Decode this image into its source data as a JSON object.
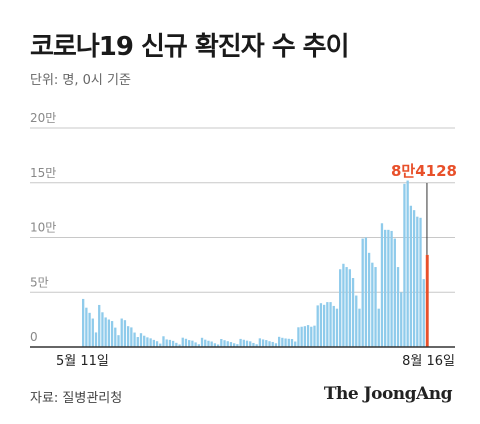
{
  "title": "코로나19 신규 확진자 수 추이",
  "unit_note": "단위: 명, 0시 기준",
  "source": "자료: 질병관리청",
  "brand": "The JoongAng",
  "colors": {
    "bar": "#8fcbeb",
    "highlight": "#e8502a",
    "grid": "#c8c8c8",
    "axis": "#333333"
  },
  "chart_data": {
    "type": "bar",
    "ylim": [
      0,
      200000
    ],
    "ytick_labels": [
      "0",
      "5만",
      "10만",
      "15만",
      "20만"
    ],
    "ytick_values": [
      0,
      50000,
      100000,
      150000,
      200000
    ],
    "xtick_labels": [
      "5월 11일",
      "8월 16일"
    ],
    "highlight_label": "8만4128",
    "highlight_value": 84128,
    "values": [
      43900,
      35900,
      31200,
      26000,
      13300,
      38400,
      31700,
      27000,
      25100,
      23700,
      17700,
      10800,
      26000,
      24500,
      19000,
      17900,
      13200,
      9100,
      12600,
      10300,
      8800,
      7900,
      6500,
      5300,
      3100,
      9800,
      6900,
      6500,
      5600,
      3800,
      2300,
      8500,
      7500,
      6300,
      5800,
      4200,
      2500,
      8400,
      6700,
      5700,
      5000,
      3400,
      2300,
      7300,
      6200,
      5300,
      4500,
      3400,
      2600,
      7400,
      6600,
      5800,
      5200,
      3700,
      2500,
      7900,
      6900,
      6300,
      5300,
      4600,
      3400,
      9300,
      8400,
      7800,
      7500,
      7300,
      5000,
      18000,
      18500,
      19000,
      20000,
      18500,
      19500,
      38000,
      40000,
      38500,
      41000,
      41000,
      37500,
      35000,
      71000,
      76000,
      73000,
      71000,
      63000,
      47000,
      35000,
      99000,
      100000,
      86000,
      77000,
      73000,
      35000,
      113000,
      107000,
      107000,
      106000,
      99000,
      73000,
      50000,
      149000,
      152000,
      129000,
      125000,
      119000,
      118000,
      62000,
      84128
    ]
  }
}
